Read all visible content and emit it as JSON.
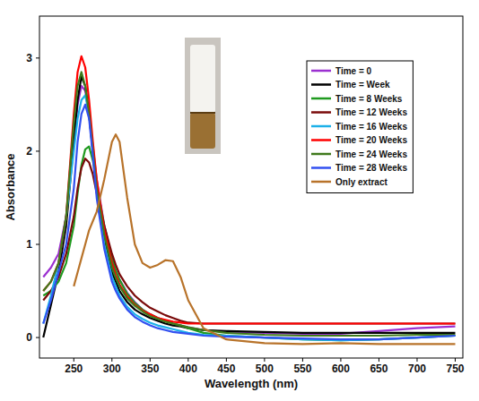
{
  "chart_data": {
    "type": "line",
    "x_label": "Wavelength (nm)",
    "y_label": "Absorbance",
    "x": [
      210,
      220,
      230,
      240,
      250,
      255,
      260,
      265,
      270,
      275,
      280,
      290,
      300,
      305,
      310,
      320,
      330,
      340,
      350,
      360,
      370,
      380,
      390,
      400,
      420,
      450,
      500,
      550,
      600,
      650,
      700,
      750
    ],
    "xlim": [
      205,
      760
    ],
    "xticks": [
      250,
      300,
      350,
      400,
      450,
      500,
      550,
      600,
      650,
      700,
      750
    ],
    "ylim": [
      -0.22,
      3.45
    ],
    "yticks": [
      0,
      1,
      2,
      3
    ],
    "grid": false,
    "legend": "upper right",
    "series": [
      {
        "name": "Time = 0",
        "color": "#9b30d0",
        "values": [
          0.65,
          0.75,
          0.9,
          1.3,
          2.1,
          2.5,
          2.7,
          2.65,
          2.4,
          2.05,
          1.7,
          1.2,
          0.85,
          0.72,
          0.62,
          0.48,
          0.38,
          0.3,
          0.25,
          0.21,
          0.18,
          0.15,
          0.13,
          0.11,
          0.08,
          0.06,
          0.05,
          0.04,
          0.04,
          0.07,
          0.1,
          0.12
        ]
      },
      {
        "name": "Time = Week",
        "color": "#000000",
        "values": [
          0.0,
          0.35,
          0.7,
          1.2,
          2.1,
          2.55,
          2.8,
          2.7,
          2.4,
          2.0,
          1.6,
          1.05,
          0.7,
          0.6,
          0.5,
          0.38,
          0.3,
          0.25,
          0.21,
          0.18,
          0.15,
          0.13,
          0.12,
          0.1,
          0.08,
          0.07,
          0.06,
          0.05,
          0.05,
          0.05,
          0.05,
          0.05
        ]
      },
      {
        "name": "Time = 8 Weeks",
        "color": "#1f9a1f",
        "values": [
          0.45,
          0.5,
          0.6,
          0.8,
          1.2,
          1.55,
          1.85,
          2.02,
          2.05,
          1.9,
          1.65,
          1.2,
          0.85,
          0.72,
          0.62,
          0.47,
          0.37,
          0.3,
          0.25,
          0.21,
          0.18,
          0.15,
          0.13,
          0.1,
          0.05,
          0.02,
          0.0,
          -0.02,
          -0.03,
          -0.02,
          0.0,
          0.02
        ]
      },
      {
        "name": "Time = 12 Weeks",
        "color": "#7a0a0a",
        "values": [
          0.4,
          0.5,
          0.65,
          0.9,
          1.3,
          1.6,
          1.82,
          1.92,
          1.88,
          1.75,
          1.55,
          1.2,
          0.9,
          0.78,
          0.68,
          0.55,
          0.45,
          0.38,
          0.32,
          0.28,
          0.24,
          0.21,
          0.18,
          0.16,
          0.15,
          0.15,
          0.15,
          0.15,
          0.15,
          0.15,
          0.15,
          0.15
        ]
      },
      {
        "name": "Time = 16 Weeks",
        "color": "#1cb0e8",
        "values": [
          0.15,
          0.45,
          0.8,
          1.3,
          2.0,
          2.35,
          2.55,
          2.6,
          2.4,
          2.0,
          1.6,
          1.0,
          0.65,
          0.55,
          0.45,
          0.33,
          0.25,
          0.2,
          0.16,
          0.13,
          0.11,
          0.09,
          0.07,
          0.05,
          0.03,
          0.02,
          0.0,
          -0.02,
          -0.03,
          -0.02,
          0.0,
          0.02
        ]
      },
      {
        "name": "Time = 20 Weeks",
        "color": "#ff0000",
        "values": [
          0.5,
          0.6,
          0.8,
          1.3,
          2.4,
          2.85,
          3.02,
          2.9,
          2.55,
          2.1,
          1.7,
          1.15,
          0.8,
          0.67,
          0.57,
          0.44,
          0.35,
          0.29,
          0.25,
          0.21,
          0.19,
          0.17,
          0.16,
          0.15,
          0.15,
          0.15,
          0.15,
          0.15,
          0.15,
          0.15,
          0.15,
          0.15
        ]
      },
      {
        "name": "Time = 24 Weeks",
        "color": "#3f7a1c",
        "values": [
          0.5,
          0.6,
          0.8,
          1.3,
          2.3,
          2.7,
          2.85,
          2.7,
          2.4,
          2.0,
          1.6,
          1.1,
          0.75,
          0.64,
          0.55,
          0.42,
          0.34,
          0.28,
          0.23,
          0.2,
          0.17,
          0.15,
          0.13,
          0.11,
          0.08,
          0.05,
          0.03,
          0.02,
          0.02,
          0.02,
          0.03,
          0.03
        ]
      },
      {
        "name": "Time = 28 Weeks",
        "color": "#3250f0",
        "values": [
          0.15,
          0.4,
          0.7,
          1.0,
          1.6,
          2.1,
          2.4,
          2.5,
          2.35,
          1.95,
          1.5,
          0.95,
          0.6,
          0.5,
          0.42,
          0.3,
          0.22,
          0.17,
          0.13,
          0.1,
          0.08,
          0.06,
          0.05,
          0.04,
          0.02,
          0.01,
          0.0,
          -0.01,
          -0.02,
          -0.02,
          0.0,
          0.02
        ]
      },
      {
        "name": "Only extract",
        "color": "#b8732a",
        "values": [
          null,
          null,
          null,
          null,
          0.55,
          0.7,
          0.85,
          1.0,
          1.15,
          1.25,
          1.35,
          1.7,
          2.1,
          2.18,
          2.1,
          1.5,
          1.0,
          0.8,
          0.75,
          0.78,
          0.83,
          0.82,
          0.65,
          0.4,
          0.1,
          -0.02,
          -0.06,
          -0.07,
          -0.06,
          -0.07,
          -0.07,
          -0.07
        ]
      }
    ]
  }
}
